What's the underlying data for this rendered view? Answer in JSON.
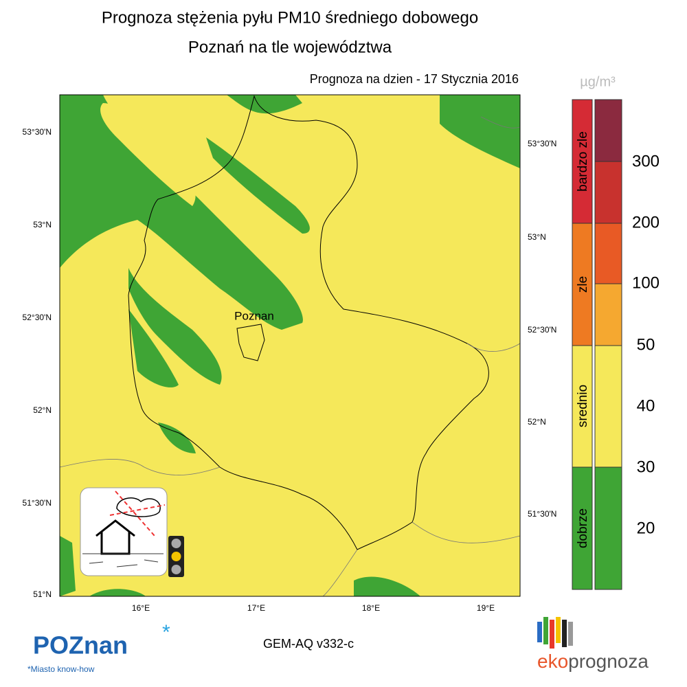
{
  "header": {
    "title": "Prognoza stężenia pyłu PM10 średniego dobowego",
    "subtitle": "Poznań na tle województwa",
    "date": "Prognoza na dzien -  17 Stycznia 2016"
  },
  "map": {
    "city": "Poznan",
    "left_lat_labels": [
      "53°30'N",
      "53°N",
      "52°30'N",
      "52°N",
      "51°30'N",
      "51°N"
    ],
    "right_lat_labels": [
      "53°30'N",
      "53°N",
      "52°30'N",
      "52°N",
      "51°30'N"
    ],
    "lon_labels": [
      "16°E",
      "17°E",
      "18°E",
      "19°E"
    ]
  },
  "legend": {
    "unit": "µg/m³",
    "classes": [
      "bardzo zle",
      "zle",
      "srednio",
      "dobrze"
    ],
    "levels": [
      300,
      200,
      100,
      50,
      40,
      30,
      20
    ]
  },
  "footer": {
    "model": "GEM-AQ v332-c",
    "city_logo": "POZnan",
    "city_slogan": "*Miasto know-how",
    "brand_prefix": "eko",
    "brand_suffix": "prognoza"
  }
}
